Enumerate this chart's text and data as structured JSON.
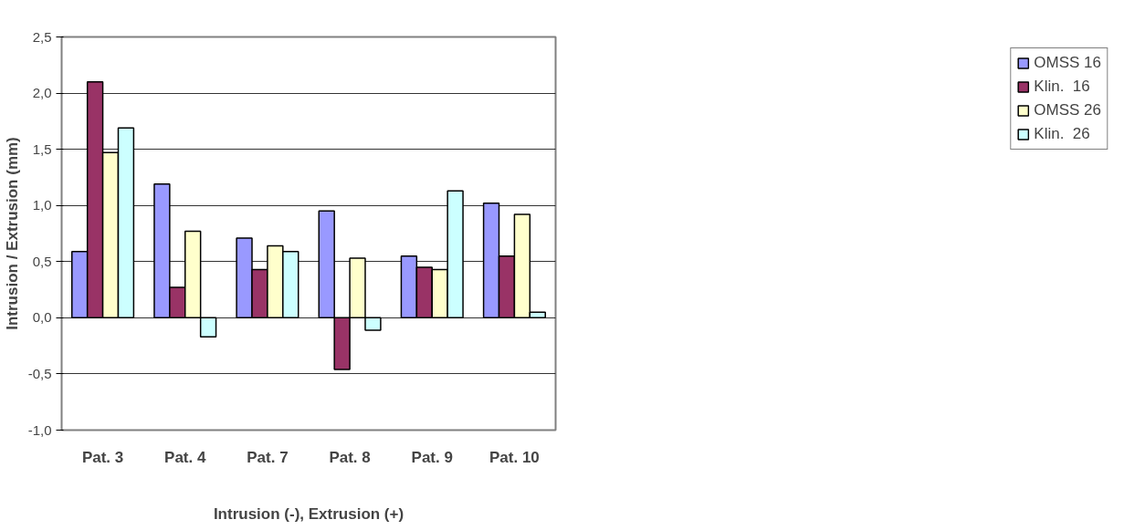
{
  "chart_data": {
    "type": "bar",
    "xlabel": "Intrusion (-), Extrusion (+)",
    "ylabel": "Intrusion / Extrusion (mm)",
    "categories": [
      "Pat. 3",
      "Pat. 4",
      "Pat. 7",
      "Pat. 8",
      "Pat. 9",
      "Pat. 10"
    ],
    "series": [
      {
        "name": "OMSS 16",
        "color": "#9999ff",
        "values": [
          0.59,
          1.19,
          0.71,
          0.95,
          0.55,
          1.02
        ]
      },
      {
        "name": "Klin.  16",
        "color": "#993366",
        "values": [
          2.1,
          0.27,
          0.43,
          -0.46,
          0.45,
          0.55
        ]
      },
      {
        "name": "OMSS 26",
        "color": "#ffffcc",
        "values": [
          1.47,
          0.77,
          0.64,
          0.53,
          0.43,
          0.92
        ]
      },
      {
        "name": "Klin.  26",
        "color": "#ccffff",
        "values": [
          1.69,
          -0.17,
          0.59,
          -0.11,
          1.13,
          0.05
        ]
      }
    ],
    "ylim": [
      -1.0,
      2.5
    ],
    "yticks": [
      {
        "value": -1.0,
        "label": "-1,0"
      },
      {
        "value": -0.5,
        "label": "-0,5"
      },
      {
        "value": 0,
        "label": "0,0"
      },
      {
        "value": 0.5,
        "label": "0,5"
      },
      {
        "value": 1.0,
        "label": "1,0"
      },
      {
        "value": 1.5,
        "label": "1,5"
      },
      {
        "value": 2.0,
        "label": "2,0"
      },
      {
        "value": 2.5,
        "label": "2,5"
      }
    ],
    "grid": "y",
    "legend": "right"
  }
}
